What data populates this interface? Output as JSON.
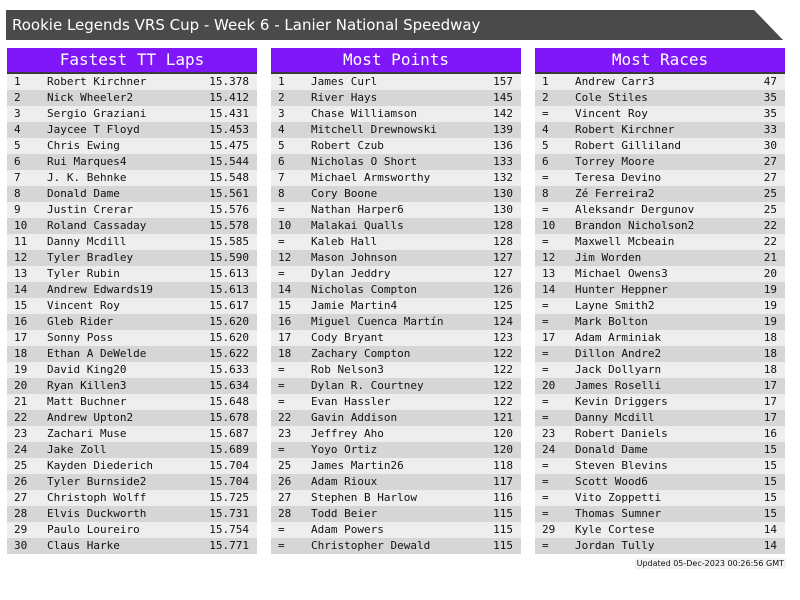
{
  "title": "Rookie Legends VRS Cup - Week 6 - Lanier National Speedway",
  "colors": {
    "header": "#8017f8",
    "title_bar": "#4a4a4a",
    "row_light": "#eeeeee",
    "row_dark": "#d6d6d6"
  },
  "boards": [
    {
      "title": "Fastest TT Laps",
      "rows": [
        [
          "1",
          "Robert Kirchner",
          "15.378"
        ],
        [
          "2",
          "Nick Wheeler2",
          "15.412"
        ],
        [
          "3",
          "Sergio Graziani",
          "15.431"
        ],
        [
          "4",
          "Jaycee T Floyd",
          "15.453"
        ],
        [
          "5",
          "Chris Ewing",
          "15.475"
        ],
        [
          "6",
          "Rui Marques4",
          "15.544"
        ],
        [
          "7",
          "J. K. Behnke",
          "15.548"
        ],
        [
          "8",
          "Donald Dame",
          "15.561"
        ],
        [
          "9",
          "Justin Crerar",
          "15.576"
        ],
        [
          "10",
          "Roland Cassaday",
          "15.578"
        ],
        [
          "11",
          "Danny Mcdill",
          "15.585"
        ],
        [
          "12",
          "Tyler Bradley",
          "15.590"
        ],
        [
          "13",
          "Tyler Rubin",
          "15.613"
        ],
        [
          "14",
          "Andrew Edwards19",
          "15.613"
        ],
        [
          "15",
          "Vincent Roy",
          "15.617"
        ],
        [
          "16",
          "Gleb Rider",
          "15.620"
        ],
        [
          "17",
          "Sonny Poss",
          "15.620"
        ],
        [
          "18",
          "Ethan A DeWelde",
          "15.622"
        ],
        [
          "19",
          "David King20",
          "15.633"
        ],
        [
          "20",
          "Ryan Killen3",
          "15.634"
        ],
        [
          "21",
          "Matt Buchner",
          "15.648"
        ],
        [
          "22",
          "Andrew Upton2",
          "15.678"
        ],
        [
          "23",
          "Zachari Muse",
          "15.687"
        ],
        [
          "24",
          "Jake Zoll",
          "15.689"
        ],
        [
          "25",
          "Kayden Diederich",
          "15.704"
        ],
        [
          "26",
          "Tyler Burnside2",
          "15.704"
        ],
        [
          "27",
          "Christoph Wolff",
          "15.725"
        ],
        [
          "28",
          "Elvis Duckworth",
          "15.731"
        ],
        [
          "29",
          "Paulo Loureiro",
          "15.754"
        ],
        [
          "30",
          "Claus Harke",
          "15.771"
        ]
      ]
    },
    {
      "title": "Most Points",
      "rows": [
        [
          "1",
          "James Curl",
          "157"
        ],
        [
          "2",
          "River Hays",
          "145"
        ],
        [
          "3",
          "Chase Williamson",
          "142"
        ],
        [
          "4",
          "Mitchell Drewnowski",
          "139"
        ],
        [
          "5",
          "Robert Czub",
          "136"
        ],
        [
          "6",
          "Nicholas O Short",
          "133"
        ],
        [
          "7",
          "Michael Armsworthy",
          "132"
        ],
        [
          "8",
          "Cory Boone",
          "130"
        ],
        [
          "=",
          "Nathan Harper6",
          "130"
        ],
        [
          "10",
          "Malakai Qualls",
          "128"
        ],
        [
          "=",
          "Kaleb Hall",
          "128"
        ],
        [
          "12",
          "Mason Johnson",
          "127"
        ],
        [
          "=",
          "Dylan Jeddry",
          "127"
        ],
        [
          "14",
          "Nicholas Compton",
          "126"
        ],
        [
          "15",
          "Jamie Martin4",
          "125"
        ],
        [
          "16",
          "Miguel Cuenca Martín",
          "124"
        ],
        [
          "17",
          "Cody Bryant",
          "123"
        ],
        [
          "18",
          "Zachary Compton",
          "122"
        ],
        [
          "=",
          "Rob Nelson3",
          "122"
        ],
        [
          "=",
          "Dylan R. Courtney",
          "122"
        ],
        [
          "=",
          "Evan Hassler",
          "122"
        ],
        [
          "22",
          "Gavin Addison",
          "121"
        ],
        [
          "23",
          "Jeffrey Aho",
          "120"
        ],
        [
          "=",
          "Yoyo Ortiz",
          "120"
        ],
        [
          "25",
          "James Martin26",
          "118"
        ],
        [
          "26",
          "Adam Rioux",
          "117"
        ],
        [
          "27",
          "Stephen B Harlow",
          "116"
        ],
        [
          "28",
          "Todd Beier",
          "115"
        ],
        [
          "=",
          "Adam Powers",
          "115"
        ],
        [
          "=",
          "Christopher Dewald",
          "115"
        ]
      ]
    },
    {
      "title": "Most Races",
      "rows": [
        [
          "1",
          "Andrew Carr3",
          "47"
        ],
        [
          "2",
          "Cole Stiles",
          "35"
        ],
        [
          "=",
          "Vincent Roy",
          "35"
        ],
        [
          "4",
          "Robert Kirchner",
          "33"
        ],
        [
          "5",
          "Robert Gilliland",
          "30"
        ],
        [
          "6",
          "Torrey Moore",
          "27"
        ],
        [
          "=",
          "Teresa Devino",
          "27"
        ],
        [
          "8",
          "Zé Ferreira2",
          "25"
        ],
        [
          "=",
          "Aleksandr Dergunov",
          "25"
        ],
        [
          "10",
          "Brandon Nicholson2",
          "22"
        ],
        [
          "=",
          "Maxwell Mcbeain",
          "22"
        ],
        [
          "12",
          "Jim Worden",
          "21"
        ],
        [
          "13",
          "Michael Owens3",
          "20"
        ],
        [
          "14",
          "Hunter Heppner",
          "19"
        ],
        [
          "=",
          "Layne Smith2",
          "19"
        ],
        [
          "=",
          "Mark Bolton",
          "19"
        ],
        [
          "17",
          "Adam Arminiak",
          "18"
        ],
        [
          "=",
          "Dillon Andre2",
          "18"
        ],
        [
          "=",
          "Jack Dollyarn",
          "18"
        ],
        [
          "20",
          "James Roselli",
          "17"
        ],
        [
          "=",
          "Kevin Driggers",
          "17"
        ],
        [
          "=",
          "Danny Mcdill",
          "17"
        ],
        [
          "23",
          "Robert Daniels",
          "16"
        ],
        [
          "24",
          "Donald Dame",
          "15"
        ],
        [
          "=",
          "Steven Blevins",
          "15"
        ],
        [
          "=",
          "Scott Wood6",
          "15"
        ],
        [
          "=",
          "Vito Zoppetti",
          "15"
        ],
        [
          "=",
          "Thomas Sumner",
          "15"
        ],
        [
          "29",
          "Kyle Cortese",
          "14"
        ],
        [
          "=",
          "Jordan Tully",
          "14"
        ]
      ]
    }
  ],
  "footer": "Updated 05-Dec-2023 00:26:56 GMT"
}
